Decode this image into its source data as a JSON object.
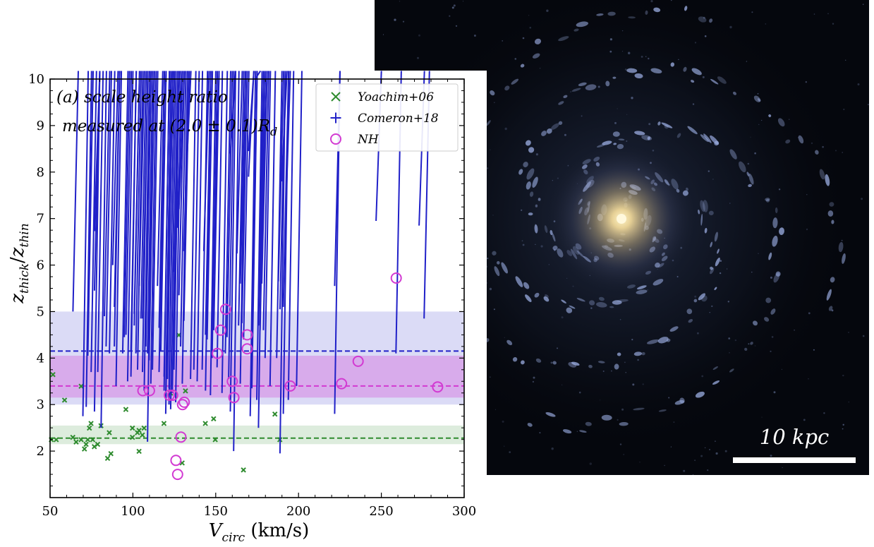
{
  "galaxy_image": {
    "scalebar_label": "10 kpc",
    "colors": {
      "background": "#05070d",
      "arms": "#9fb2e8",
      "bulge": "#f3dea4",
      "scalebar": "#ffffff"
    }
  },
  "chart_data": {
    "type": "scatter",
    "title": "",
    "annotation": [
      "(a) scale height ratio",
      "measured at (2.0 ± 0.1)R",
      "d"
    ],
    "xlabel": {
      "main": "V",
      "sub": "circ",
      "unit": " (km/s)"
    },
    "ylabel": {
      "a": "z",
      "a_sub": "thick",
      "slash": "/",
      "b": "z",
      "b_sub": "thin"
    },
    "xlim": [
      50,
      300
    ],
    "ylim": [
      1,
      10
    ],
    "xticks": [
      "50",
      "100",
      "150",
      "200",
      "250",
      "300"
    ],
    "yticks": [
      "2",
      "3",
      "4",
      "5",
      "6",
      "7",
      "8",
      "9",
      "10"
    ],
    "legend": {
      "position": "top-right",
      "labels": [
        "Yoachim+06",
        "Comeron+18",
        "NH"
      ]
    },
    "series": [
      {
        "name": "Yoachim+06",
        "marker": "x",
        "color": "#2e8b2e",
        "median": 2.28,
        "band": [
          2.15,
          2.55
        ],
        "points": [
          [
            52,
            2.2
          ],
          [
            53,
            3.6
          ],
          [
            55,
            2.2
          ],
          [
            60,
            3.05
          ],
          [
            65,
            2.25
          ],
          [
            67,
            2.15
          ],
          [
            70,
            2.2
          ],
          [
            70,
            3.35
          ],
          [
            72,
            2.0
          ],
          [
            73,
            2.1
          ],
          [
            74,
            2.2
          ],
          [
            75,
            2.45
          ],
          [
            76,
            2.55
          ],
          [
            77,
            2.2
          ],
          [
            78,
            2.05
          ],
          [
            80,
            2.1
          ],
          [
            82,
            2.5
          ],
          [
            86,
            1.8
          ],
          [
            87,
            2.35
          ],
          [
            88,
            1.9
          ],
          [
            97,
            2.85
          ],
          [
            101,
            2.45
          ],
          [
            101,
            2.25
          ],
          [
            104,
            2.35
          ],
          [
            105,
            1.95
          ],
          [
            105,
            2.4
          ],
          [
            107,
            2.3
          ],
          [
            108,
            2.45
          ],
          [
            120,
            2.55
          ],
          [
            124,
            3.2
          ],
          [
            129,
            4.45
          ],
          [
            131,
            1.7
          ],
          [
            133,
            3.25
          ],
          [
            145,
            2.55
          ],
          [
            150,
            2.65
          ],
          [
            151,
            2.2
          ],
          [
            168,
            1.55
          ],
          [
            187,
            2.75
          ],
          [
            190,
            2.2
          ]
        ]
      },
      {
        "name": "Comeron+18",
        "marker": "+",
        "color": "#2020c8",
        "median": 4.15,
        "band": [
          3.0,
          5.0
        ],
        "points": [
          [
            67,
            5.0
          ],
          [
            73,
            2.75
          ],
          [
            75,
            2.95
          ],
          [
            76,
            4.05
          ],
          [
            78,
            3.7
          ],
          [
            80,
            2.85
          ],
          [
            80,
            5.45
          ],
          [
            80,
            6.73
          ],
          [
            82,
            3.7
          ],
          [
            84,
            2.5
          ],
          [
            86,
            4.9
          ],
          [
            87,
            4.25
          ],
          [
            89,
            4.1
          ],
          [
            91,
            6.0
          ],
          [
            92,
            4.25
          ],
          [
            92,
            5.1
          ],
          [
            93,
            3.4
          ],
          [
            97,
            4.1
          ],
          [
            98,
            4.45
          ],
          [
            99,
            4.5
          ],
          [
            100,
            3.5
          ],
          [
            102,
            4.15
          ],
          [
            102,
            3.6
          ],
          [
            104,
            4.7
          ],
          [
            104,
            4.95
          ],
          [
            105,
            4.1
          ],
          [
            106,
            3.75
          ],
          [
            107,
            5.55
          ],
          [
            108,
            4.85
          ],
          [
            109,
            3.7
          ],
          [
            109,
            4.85
          ],
          [
            110,
            3.3
          ],
          [
            111,
            4.6
          ],
          [
            111,
            4.25
          ],
          [
            112,
            4.1
          ],
          [
            112,
            2.2
          ],
          [
            113,
            3.95
          ],
          [
            114,
            3.45
          ],
          [
            115,
            3.75
          ],
          [
            118,
            5.55
          ],
          [
            119,
            3.7
          ],
          [
            119,
            4.65
          ],
          [
            120,
            5.05
          ],
          [
            120,
            4.15
          ],
          [
            122,
            3.6
          ],
          [
            122,
            3.3
          ],
          [
            123,
            3.15
          ],
          [
            123,
            2.8
          ],
          [
            124,
            3.55
          ],
          [
            124,
            4.2
          ],
          [
            124,
            4.5
          ],
          [
            125,
            3.35
          ],
          [
            125,
            3.0
          ],
          [
            126,
            2.9
          ],
          [
            127,
            3.25
          ],
          [
            128,
            5.85
          ],
          [
            128,
            4.05
          ],
          [
            128,
            3.75
          ],
          [
            129,
            3.05
          ],
          [
            130,
            6.8
          ],
          [
            131,
            7.2
          ],
          [
            131,
            5.35
          ],
          [
            132,
            4.25
          ],
          [
            133,
            3.45
          ],
          [
            134,
            4.8
          ],
          [
            134,
            6.3
          ],
          [
            135,
            7.6
          ],
          [
            138,
            3.55
          ],
          [
            140,
            3.75
          ],
          [
            142,
            3.5
          ],
          [
            145,
            3.75
          ],
          [
            146,
            6.3
          ],
          [
            147,
            4.5
          ],
          [
            147,
            3.3
          ],
          [
            148,
            4.4
          ],
          [
            150,
            3.2
          ],
          [
            151,
            4.0
          ],
          [
            152,
            4.6
          ],
          [
            152,
            5.8
          ],
          [
            154,
            3.8
          ],
          [
            157,
            3.25
          ],
          [
            159,
            4.1
          ],
          [
            160,
            4.45
          ],
          [
            161,
            3.55
          ],
          [
            162,
            8.4
          ],
          [
            162,
            2.85
          ],
          [
            164,
            2.0
          ],
          [
            166,
            6.25
          ],
          [
            167,
            4.7
          ],
          [
            168,
            3.45
          ],
          [
            168,
            5.6
          ],
          [
            169,
            4.75
          ],
          [
            170,
            4.4
          ],
          [
            173,
            7.9
          ],
          [
            173,
            8.45
          ],
          [
            174,
            2.75
          ],
          [
            175,
            3.35
          ],
          [
            175,
            4.2
          ],
          [
            177,
            10.0
          ],
          [
            178,
            3.1
          ],
          [
            179,
            4.7
          ],
          [
            179,
            2.5
          ],
          [
            179,
            5.25
          ],
          [
            180,
            4.6
          ],
          [
            181,
            5.6
          ],
          [
            181,
            6.25
          ],
          [
            182,
            4.6
          ],
          [
            183,
            4.0
          ],
          [
            186,
            3.4
          ],
          [
            190,
            4.0
          ],
          [
            191,
            5.65
          ],
          [
            192,
            1.95
          ],
          [
            192,
            5.05
          ],
          [
            193,
            7.8
          ],
          [
            194,
            5.1
          ],
          [
            194,
            2.8
          ],
          [
            195,
            6.55
          ],
          [
            197,
            3.1
          ],
          [
            202,
            3.4
          ],
          [
            225,
            5.55
          ],
          [
            225,
            2.8
          ],
          [
            250,
            6.95
          ],
          [
            262,
            4.1
          ],
          [
            276,
            6.85
          ],
          [
            279,
            4.85
          ]
        ]
      },
      {
        "name": "NH",
        "marker": "o",
        "color": "#d23ad2",
        "median": 3.4,
        "band": [
          3.15,
          4.05
        ],
        "points": [
          [
            106,
            3.3
          ],
          [
            110,
            3.3
          ],
          [
            122,
            3.2
          ],
          [
            124,
            3.2
          ],
          [
            126,
            1.8
          ],
          [
            127,
            1.5
          ],
          [
            129,
            2.3
          ],
          [
            130,
            3.0
          ],
          [
            131,
            3.05
          ],
          [
            151,
            4.1
          ],
          [
            153,
            4.6
          ],
          [
            156,
            5.05
          ],
          [
            160,
            3.5
          ],
          [
            161,
            3.15
          ],
          [
            169,
            4.2
          ],
          [
            169,
            4.5
          ],
          [
            195,
            3.4
          ],
          [
            226,
            3.45
          ],
          [
            236,
            3.93
          ],
          [
            259,
            5.72
          ],
          [
            284,
            3.38
          ]
        ]
      }
    ]
  }
}
